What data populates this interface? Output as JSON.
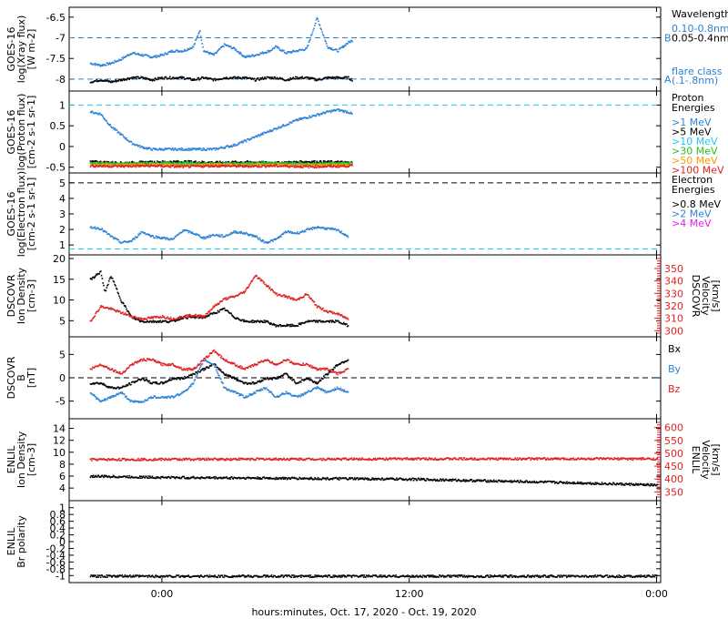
{
  "figure": {
    "x_axis_label": "hours:minutes, Oct. 17, 2020 - Oct. 19, 2020",
    "x_ticks": [
      {
        "h": 0,
        "label": "0:00"
      },
      {
        "h": 12,
        "label": "12:00"
      },
      {
        "h": 24,
        "label": "0:00"
      }
    ]
  },
  "colors": {
    "black": "#000000",
    "blue": "#2a83d6",
    "cyan": "#1ec8f0",
    "green": "#28c020",
    "orange": "#ff9a00",
    "red": "#e02020",
    "magenta": "#e020e0"
  },
  "chart_data": [
    {
      "id": "xray",
      "type": "scatter",
      "ylabel": [
        "GOES-16",
        "log(Xray flux)",
        "[W m-2]"
      ],
      "ylim": [
        -8.2,
        -6.35
      ],
      "y_ticks": [
        -6.5,
        -7.0,
        -7.5,
        -8.0
      ],
      "x_range_hours": [
        -3.5,
        9.2
      ],
      "ref_lines": [
        {
          "y": -7.0,
          "color": "blue",
          "label": "B"
        },
        {
          "y": -8.0,
          "color": "blue",
          "label": "A"
        }
      ],
      "legend_title": [
        "Wavelength"
      ],
      "legend": [
        {
          "text": "0.10-0.8nm",
          "color": "blue"
        },
        {
          "text": "0.05-0.4nm",
          "color": "black"
        }
      ],
      "annotation": [
        "flare class",
        "(.1-.8nm)"
      ],
      "series": [
        {
          "name": "0.10-0.8nm",
          "color": "blue",
          "x": [
            -3.5,
            -3.0,
            -2.5,
            -2.0,
            -1.5,
            -1.0,
            -0.5,
            0.0,
            0.5,
            1.0,
            1.5,
            1.8,
            2.0,
            2.5,
            3.0,
            3.5,
            4.0,
            4.5,
            5.2,
            5.5,
            6.0,
            6.5,
            7.0,
            7.5,
            8.0,
            8.5,
            9.0,
            9.2
          ],
          "y": [
            -7.6,
            -7.65,
            -7.6,
            -7.5,
            -7.35,
            -7.4,
            -7.45,
            -7.4,
            -7.3,
            -7.3,
            -7.2,
            -6.8,
            -7.3,
            -7.4,
            -7.15,
            -7.25,
            -7.45,
            -7.4,
            -7.3,
            -7.2,
            -7.35,
            -7.3,
            -7.25,
            -6.5,
            -7.2,
            -7.3,
            -7.1,
            -7.05
          ]
        },
        {
          "name": "0.05-0.4nm",
          "color": "black",
          "x": [
            -3.5,
            -3.0,
            -2.5,
            -2.0,
            -1.5,
            -1.0,
            -0.5,
            0.0,
            0.5,
            1.0,
            1.5,
            2.0,
            2.5,
            3.0,
            3.5,
            4.0,
            4.5,
            5.0,
            5.5,
            6.0,
            6.5,
            7.0,
            7.5,
            8.0,
            8.5,
            9.0,
            9.2
          ],
          "y": [
            -8.05,
            -8.0,
            -8.05,
            -8.0,
            -7.95,
            -7.95,
            -8.0,
            -7.95,
            -7.95,
            -7.95,
            -8.0,
            -7.95,
            -8.0,
            -7.95,
            -7.95,
            -7.95,
            -8.0,
            -7.95,
            -7.95,
            -8.0,
            -7.95,
            -7.95,
            -8.0,
            -7.95,
            -7.95,
            -7.95,
            -8.0
          ]
        }
      ]
    },
    {
      "id": "proton",
      "type": "scatter",
      "ylabel": [
        "GOES-16",
        "log(Proton flux)",
        "[cm-2 s-1 sr-1]"
      ],
      "ylim": [
        -0.55,
        1.25
      ],
      "y_ticks": [
        1.0,
        0.5,
        0.0,
        -0.5
      ],
      "x_range_hours": [
        -3.5,
        9.2
      ],
      "ref_lines": [
        {
          "y": 1.0,
          "color": "cyan",
          "label": ""
        }
      ],
      "legend_title": [
        "Proton",
        "Energies"
      ],
      "legend": [
        {
          "text": ">1 MeV",
          "color": "blue"
        },
        {
          "text": ">5 MeV",
          "color": "black"
        },
        {
          "text": ">10 MeV",
          "color": "cyan"
        },
        {
          "text": ">30 MeV",
          "color": "green"
        },
        {
          "text": ">50 MeV",
          "color": "orange"
        },
        {
          "text": ">100 MeV",
          "color": "red"
        }
      ],
      "annotation": [],
      "series": [
        {
          "name": ">1 MeV",
          "color": "blue",
          "x": [
            -3.5,
            -3.0,
            -2.5,
            -2.0,
            -1.5,
            -1.0,
            -0.5,
            0.0,
            0.5,
            1.0,
            1.5,
            2.0,
            2.5,
            3.0,
            3.5,
            4.0,
            4.5,
            5.0,
            5.5,
            6.0,
            6.5,
            7.0,
            7.5,
            8.0,
            8.5,
            9.0,
            9.2
          ],
          "y": [
            0.85,
            0.8,
            0.5,
            0.3,
            0.1,
            0.0,
            -0.05,
            -0.05,
            -0.05,
            -0.05,
            -0.05,
            -0.05,
            -0.05,
            0.0,
            0.05,
            0.15,
            0.25,
            0.35,
            0.45,
            0.55,
            0.65,
            0.72,
            0.78,
            0.85,
            0.9,
            0.85,
            0.8
          ]
        },
        {
          "name": ">5 MeV",
          "color": "black",
          "x": [
            -3.5,
            -2.0,
            -0.5,
            1.0,
            2.5,
            4.0,
            5.5,
            7.0,
            8.5,
            9.2
          ],
          "y": [
            -0.35,
            -0.38,
            -0.36,
            -0.35,
            -0.37,
            -0.36,
            -0.38,
            -0.35,
            -0.36,
            -0.37
          ]
        },
        {
          "name": ">10 MeV",
          "color": "cyan",
          "x": [
            -3.5,
            -2.0,
            -0.5,
            1.0,
            2.5,
            4.0,
            5.5,
            7.0,
            8.5,
            9.2
          ],
          "y": [
            -0.4,
            -0.41,
            -0.4,
            -0.42,
            -0.4,
            -0.41,
            -0.4,
            -0.42,
            -0.41,
            -0.4
          ]
        },
        {
          "name": ">30 MeV",
          "color": "green",
          "x": [
            -3.5,
            -2.0,
            -0.5,
            1.0,
            2.5,
            4.0,
            5.5,
            7.0,
            8.5,
            9.2
          ],
          "y": [
            -0.38,
            -0.4,
            -0.39,
            -0.38,
            -0.4,
            -0.39,
            -0.38,
            -0.4,
            -0.39,
            -0.38
          ]
        },
        {
          "name": ">50 MeV",
          "color": "orange",
          "x": [
            -3.5,
            -2.0,
            -0.5,
            1.0,
            2.5,
            4.0,
            5.5,
            7.0,
            8.5,
            9.2
          ],
          "y": [
            -0.42,
            -0.43,
            -0.42,
            -0.44,
            -0.42,
            -0.43,
            -0.42,
            -0.44,
            -0.43,
            -0.42
          ]
        },
        {
          "name": ">100 MeV",
          "color": "red",
          "x": [
            -3.5,
            -2.0,
            -0.5,
            1.0,
            2.5,
            4.0,
            5.5,
            7.0,
            8.5,
            9.2
          ],
          "y": [
            -0.45,
            -0.46,
            -0.45,
            -0.47,
            -0.45,
            -0.46,
            -0.45,
            -0.47,
            -0.46,
            -0.45
          ]
        }
      ]
    },
    {
      "id": "electron",
      "type": "scatter",
      "ylabel": [
        "GOES-16",
        "log(Electron flux)",
        "[cm-2 s-1 sr-1]"
      ],
      "ylim": [
        0.6,
        5.4
      ],
      "y_ticks": [
        5,
        4,
        3,
        2,
        1
      ],
      "x_range_hours": [
        -3.5,
        9.2
      ],
      "ref_lines": [
        {
          "y": 5.0,
          "color": "black",
          "label": ""
        },
        {
          "y": 0.75,
          "color": "cyan",
          "label": ""
        }
      ],
      "legend_title": [
        "Electron",
        "Energies"
      ],
      "legend": [
        {
          "text": ">0.8 MeV",
          "color": "black"
        },
        {
          "text": ">2 MeV",
          "color": "blue"
        },
        {
          "text": ">4 MeV",
          "color": "magenta"
        }
      ],
      "annotation": [],
      "series": [
        {
          "name": ">2 MeV",
          "color": "blue",
          "x": [
            -3.5,
            -3.0,
            -2.5,
            -2.0,
            -1.5,
            -1.0,
            -0.5,
            0.0,
            0.5,
            1.0,
            1.5,
            2.0,
            2.5,
            3.0,
            3.5,
            4.0,
            4.5,
            5.0,
            5.5,
            6.0,
            6.5,
            7.0,
            7.5,
            8.0,
            8.5,
            9.0
          ],
          "y": [
            2.2,
            2.1,
            1.6,
            1.2,
            1.3,
            1.9,
            1.6,
            1.5,
            1.4,
            2.0,
            1.8,
            1.5,
            1.7,
            1.6,
            1.9,
            1.8,
            1.6,
            1.2,
            1.4,
            1.9,
            1.8,
            2.0,
            2.2,
            2.1,
            2.0,
            1.6
          ]
        }
      ]
    },
    {
      "id": "dscovr-plasma",
      "type": "scatter",
      "ylabel": [
        "DSCOVR",
        "Ion Density",
        "[cm-3]"
      ],
      "ylim": [
        2,
        20
      ],
      "y_ticks": [
        20,
        15,
        10,
        5
      ],
      "x_range_hours": [
        -3.5,
        9.2
      ],
      "ylabel_right": [
        "DSCOVR",
        "Velocity",
        "[km/s]"
      ],
      "ylim_right": [
        298,
        358
      ],
      "y_ticks_right": [
        350,
        340,
        330,
        320,
        310,
        300
      ],
      "ref_lines": [],
      "legend_title": [],
      "legend": [],
      "annotation": [],
      "series": [
        {
          "name": "density",
          "color": "black",
          "axis": "left",
          "x": [
            -3.5,
            -3.0,
            -2.8,
            -2.5,
            -2.0,
            -1.5,
            -1.0,
            -0.5,
            0.0,
            0.5,
            1.0,
            1.5,
            2.0,
            2.5,
            3.0,
            3.5,
            4.0,
            4.5,
            5.0,
            5.5,
            6.0,
            6.5,
            7.0,
            7.5,
            8.0,
            8.5,
            9.0
          ],
          "y": [
            15,
            17,
            12,
            16,
            10,
            6,
            5,
            5,
            5,
            5,
            6,
            6,
            6,
            7,
            8,
            6,
            5,
            5,
            5,
            4,
            4,
            4,
            5,
            5,
            5,
            5,
            4
          ]
        },
        {
          "name": "velocity",
          "color": "red",
          "axis": "right",
          "x": [
            -3.5,
            -3.0,
            -2.5,
            -2.0,
            -1.5,
            -1.0,
            -0.5,
            0.0,
            0.5,
            1.0,
            1.5,
            2.0,
            2.5,
            3.0,
            3.5,
            4.0,
            4.5,
            5.0,
            5.5,
            6.0,
            6.5,
            7.0,
            7.5,
            8.0,
            8.5,
            9.0
          ],
          "y": [
            308,
            320,
            318,
            315,
            312,
            310,
            311,
            312,
            310,
            312,
            313,
            312,
            320,
            326,
            328,
            332,
            345,
            338,
            330,
            328,
            325,
            330,
            320,
            316,
            314,
            310
          ]
        }
      ]
    },
    {
      "id": "dscovr-mag",
      "type": "scatter",
      "ylabel": [
        "DSCOVR",
        "B",
        "[nT]"
      ],
      "ylim": [
        -8,
        8
      ],
      "y_ticks": [
        5,
        0,
        -5
      ],
      "x_range_hours": [
        -3.5,
        9.2
      ],
      "ref_lines": [
        {
          "y": 0,
          "color": "black",
          "label": ""
        }
      ],
      "legend_title": [],
      "legend": [
        {
          "text": "Bx",
          "color": "black"
        },
        {
          "text": "By",
          "color": "blue"
        },
        {
          "text": "Bz",
          "color": "red"
        }
      ],
      "annotation": [],
      "series": [
        {
          "name": "Bx",
          "color": "black",
          "x": [
            -3.5,
            -3.0,
            -2.5,
            -2.0,
            -1.5,
            -1.0,
            -0.5,
            0.0,
            0.5,
            1.0,
            1.5,
            2.0,
            2.5,
            3.0,
            3.5,
            4.0,
            4.5,
            5.0,
            5.5,
            6.0,
            6.5,
            7.0,
            7.5,
            8.0,
            8.5,
            9.0
          ],
          "y": [
            -1,
            -1,
            -2,
            -2,
            -1,
            0,
            -1,
            -1,
            0,
            0,
            1,
            2,
            3,
            1,
            0,
            -1,
            -1,
            0,
            0,
            1,
            -1,
            0,
            -1,
            1,
            3,
            4
          ]
        },
        {
          "name": "By",
          "color": "blue",
          "x": [
            -3.5,
            -3.0,
            -2.5,
            -2.0,
            -1.5,
            -1.0,
            -0.5,
            0.0,
            0.5,
            1.0,
            1.5,
            2.0,
            2.5,
            3.0,
            3.5,
            4.0,
            4.5,
            5.0,
            5.5,
            6.0,
            6.5,
            7.0,
            7.5,
            8.0,
            8.5,
            9.0
          ],
          "y": [
            -3,
            -5,
            -4,
            -3,
            -5,
            -5,
            -4,
            -4,
            -4,
            -3,
            -1,
            4,
            3,
            -2,
            -3,
            -4,
            -3,
            -2,
            -4,
            -3,
            -4,
            -3,
            -2,
            -3,
            -2,
            -3
          ]
        },
        {
          "name": "Bz",
          "color": "red",
          "x": [
            -3.5,
            -3.0,
            -2.5,
            -2.0,
            -1.5,
            -1.0,
            -0.5,
            0.0,
            0.5,
            1.0,
            1.5,
            2.0,
            2.5,
            3.0,
            3.5,
            4.0,
            4.5,
            5.0,
            5.5,
            6.0,
            6.5,
            7.0,
            7.5,
            8.0,
            8.5,
            9.0
          ],
          "y": [
            2,
            3,
            2,
            1,
            3,
            4,
            4,
            3,
            3,
            2,
            2,
            4,
            6,
            4,
            3,
            2,
            3,
            4,
            3,
            4,
            3,
            3,
            2,
            2,
            1,
            2
          ]
        }
      ]
    },
    {
      "id": "enlil-plasma",
      "type": "scatter",
      "ylabel": [
        "ENLIL",
        "Ion Density",
        "[cm-3]"
      ],
      "ylim": [
        2.5,
        15
      ],
      "y_ticks": [
        14,
        12,
        10,
        8,
        6,
        4
      ],
      "x_range_hours": [
        -3.5,
        24
      ],
      "ylabel_right": [
        "ENLIL",
        "Velocity",
        "[km/s]"
      ],
      "ylim_right": [
        330,
        620
      ],
      "y_ticks_right": [
        600,
        550,
        500,
        450,
        400,
        350
      ],
      "ref_lines": [],
      "legend_title": [],
      "legend": [],
      "annotation": [],
      "series": [
        {
          "name": "density",
          "color": "black",
          "axis": "left",
          "x": [
            -3.5,
            0,
            4,
            8,
            12,
            16,
            20,
            24
          ],
          "y": [
            6.1,
            5.9,
            5.8,
            5.7,
            5.6,
            5.3,
            5.0,
            4.6
          ]
        },
        {
          "name": "velocity",
          "color": "red",
          "axis": "right",
          "x": [
            -3.5,
            0,
            4,
            8,
            12,
            16,
            20,
            24
          ],
          "y": [
            478,
            479,
            480,
            480,
            481,
            481,
            481,
            481
          ]
        }
      ]
    },
    {
      "id": "enlil-polarity",
      "type": "scatter",
      "ylabel": [
        "ENLIL",
        "Br polarity"
      ],
      "ylim": [
        -1.1,
        1.1
      ],
      "y_ticks": [
        1.0,
        0.8,
        0.6,
        0.4,
        0.2,
        0.0,
        -0.2,
        -0.4,
        -0.6,
        -0.8,
        -1.0
      ],
      "x_range_hours": [
        -3.5,
        24
      ],
      "ref_lines": [],
      "legend_title": [],
      "legend": [],
      "annotation": [],
      "series": [
        {
          "name": "polarity",
          "color": "black",
          "x": [
            -3.5,
            0,
            4,
            8,
            12,
            16,
            20,
            24
          ],
          "y": [
            -1,
            -1,
            -1,
            -1,
            -1,
            -1,
            -1,
            -1
          ]
        }
      ]
    }
  ]
}
